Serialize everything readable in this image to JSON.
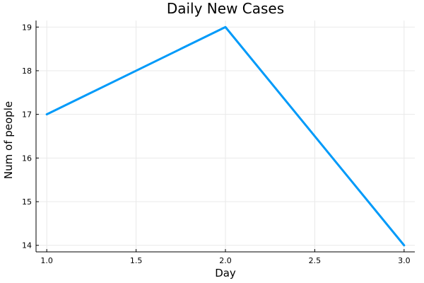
{
  "chart_data": {
    "type": "line",
    "title": "Daily New Cases",
    "xlabel": "Day",
    "ylabel": "Num of people",
    "x": [
      1.0,
      2.0,
      3.0
    ],
    "series": [
      {
        "values": [
          17,
          19,
          14
        ],
        "color": "#009af9"
      }
    ],
    "xlim": [
      0.94,
      3.06
    ],
    "ylim": [
      13.85,
      19.15
    ],
    "xticks": [
      1.0,
      1.5,
      2.0,
      2.5,
      3.0
    ],
    "xtick_labels": [
      "1.0",
      "1.5",
      "2.0",
      "2.5",
      "3.0"
    ],
    "yticks": [
      14,
      15,
      16,
      17,
      18,
      19
    ],
    "ytick_labels": [
      "14",
      "15",
      "16",
      "17",
      "18",
      "19"
    ],
    "grid": true,
    "legend": "none"
  }
}
